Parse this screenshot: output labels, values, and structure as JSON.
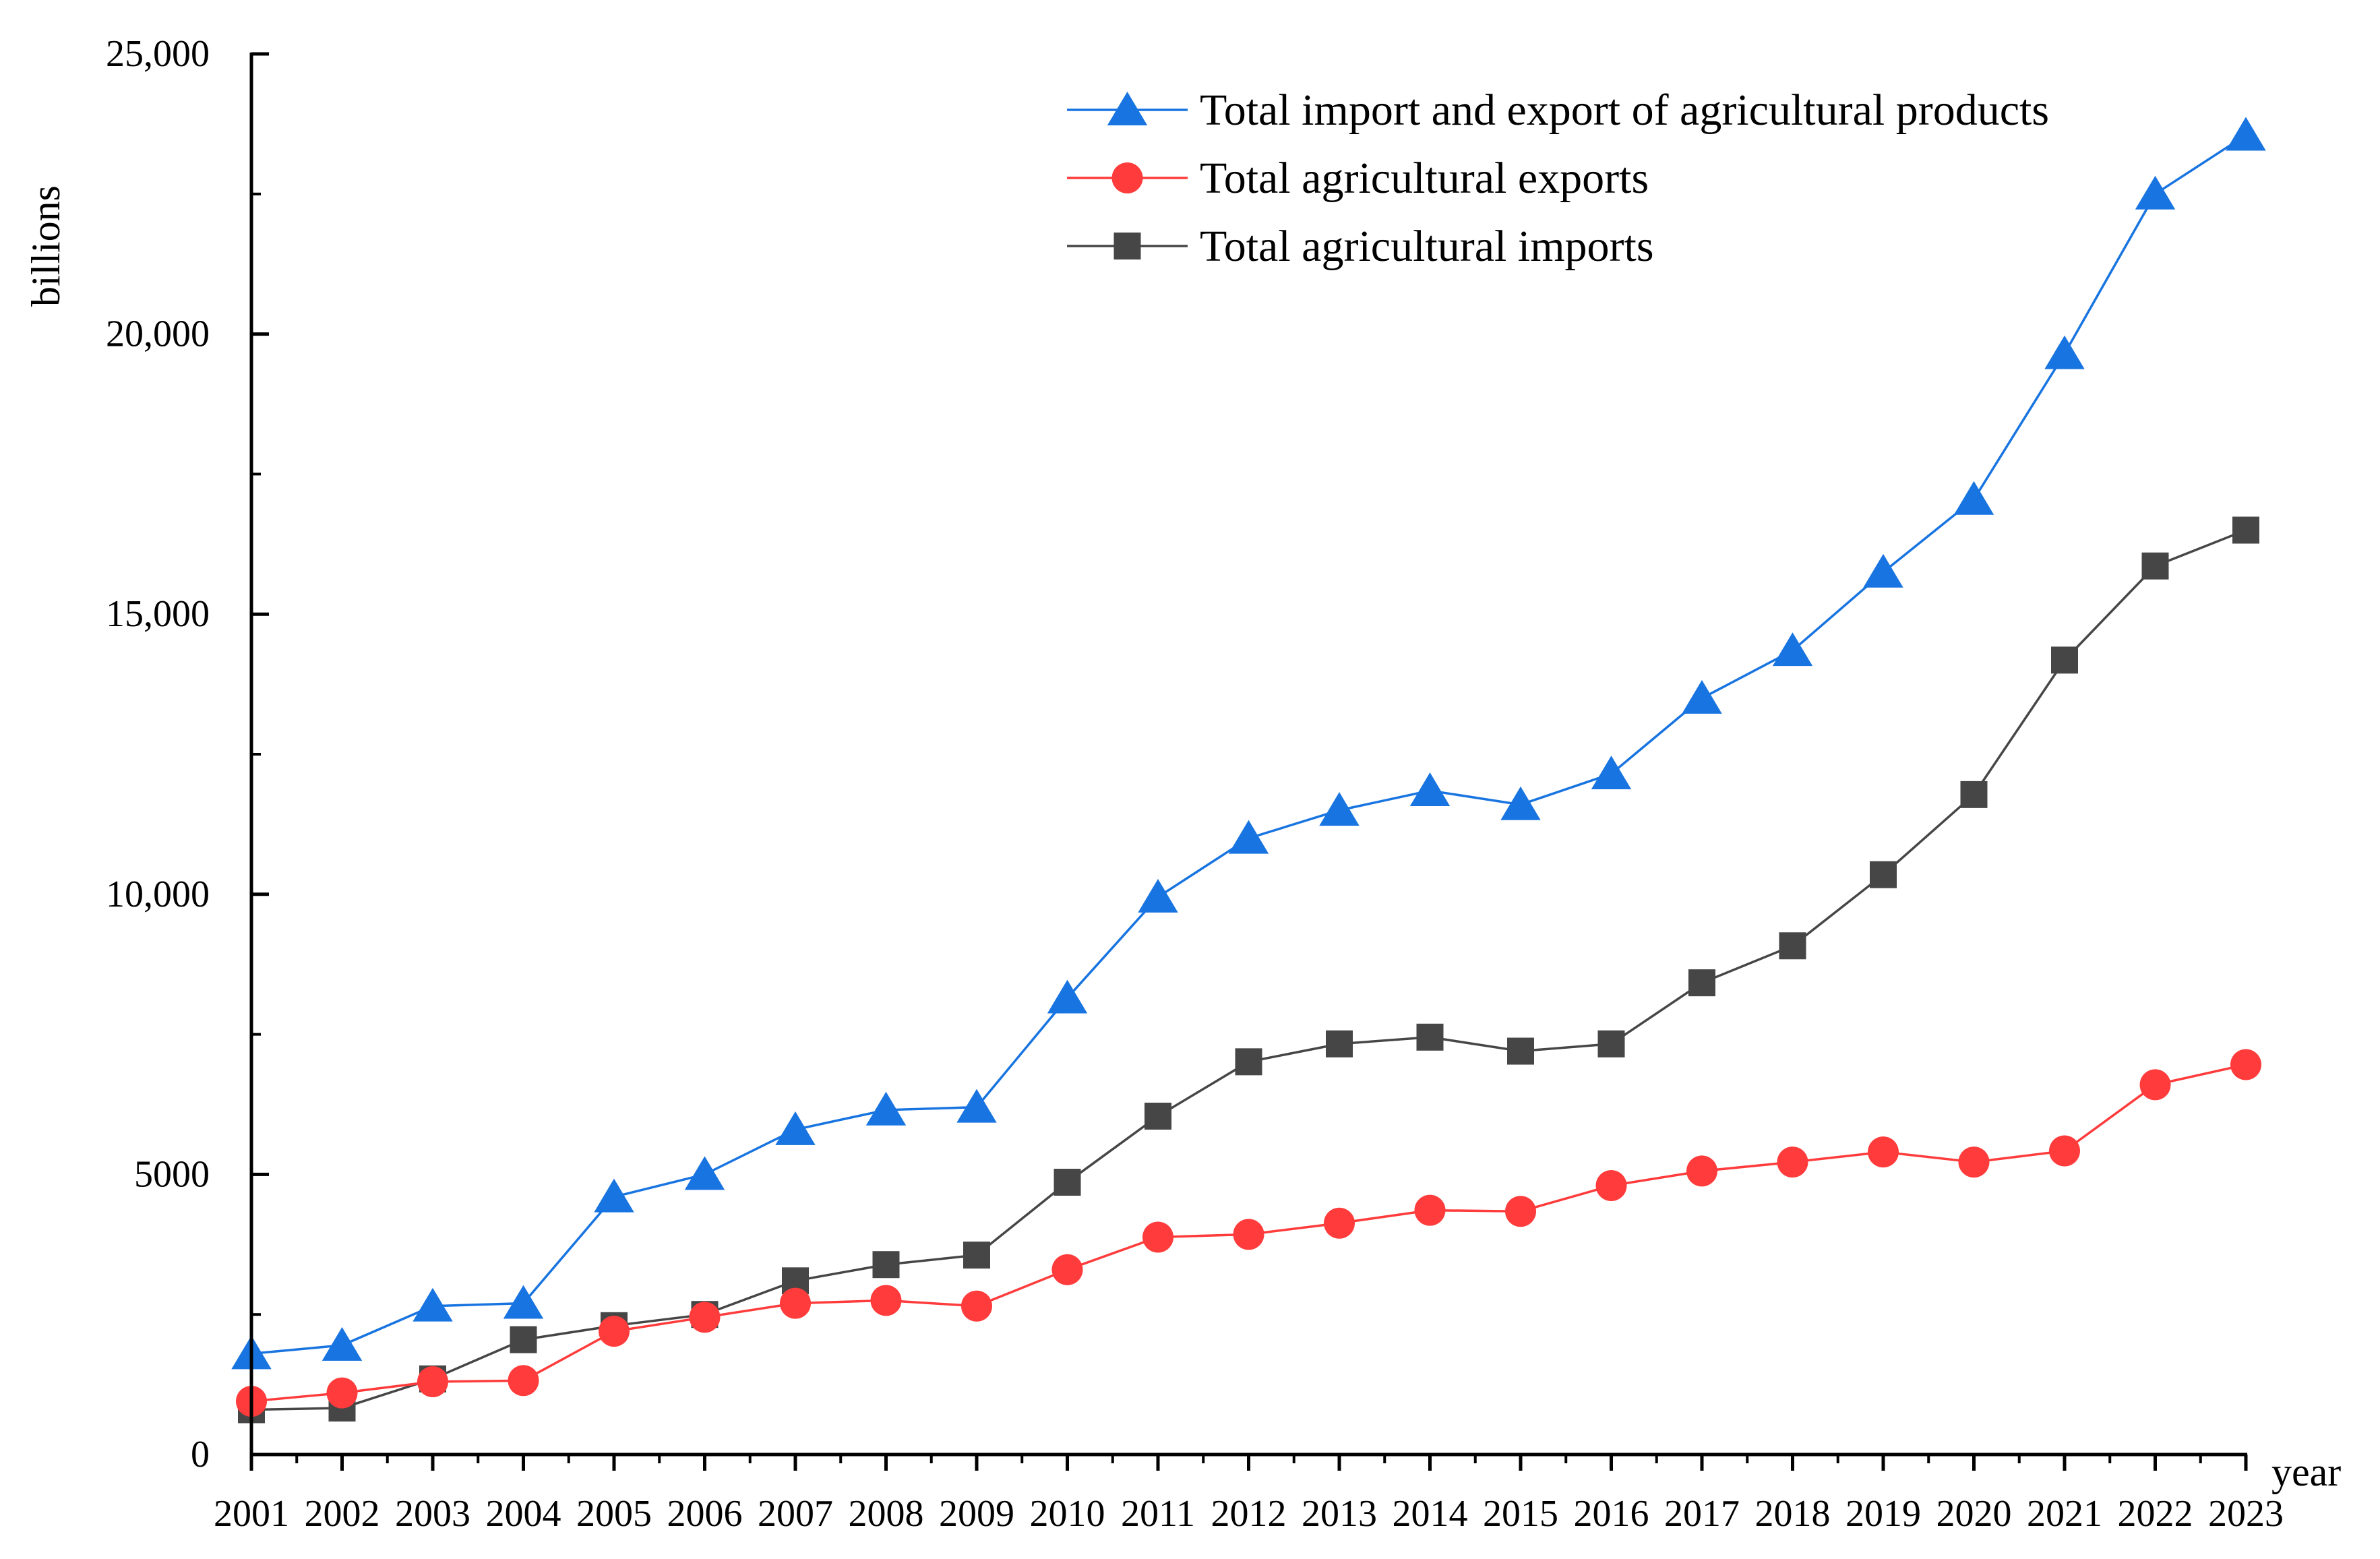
{
  "chart_data": {
    "type": "line",
    "title": "",
    "xlabel": "year",
    "ylabel": "billions",
    "ylim": [
      0,
      25000
    ],
    "yticks": [
      0,
      5000,
      10000,
      15000,
      20000,
      25000
    ],
    "ytick_labels": [
      "0",
      "5000",
      "10,000",
      "15,000",
      "20,000",
      "25,000"
    ],
    "categories": [
      "2001",
      "2002",
      "2003",
      "2004",
      "2005",
      "2006",
      "2007",
      "2008",
      "2009",
      "2010",
      "2011",
      "2012",
      "2013",
      "2014",
      "2015",
      "2016",
      "2017",
      "2018",
      "2019",
      "2020",
      "2021",
      "2022",
      "2023"
    ],
    "grid": false,
    "legend_position": "top-right",
    "series": [
      {
        "name": "Total import and export of agricultural products",
        "marker": "triangle",
        "color": "#1874e0",
        "values": [
          1800,
          1950,
          2650,
          2700,
          4600,
          5000,
          5800,
          6150,
          6200,
          8150,
          9950,
          11000,
          11500,
          11850,
          11600,
          12150,
          13500,
          14350,
          15750,
          17050,
          19650,
          22500,
          23550
        ]
      },
      {
        "name": "Total agricultural exports",
        "marker": "circle",
        "color": "#ff3b3b",
        "values": [
          950,
          1100,
          1300,
          1320,
          2200,
          2450,
          2700,
          2750,
          2650,
          3300,
          3880,
          3930,
          4130,
          4360,
          4340,
          4800,
          5060,
          5220,
          5400,
          5220,
          5420,
          6600,
          6960
        ]
      },
      {
        "name": "Total agricultural imports",
        "marker": "square",
        "color": "#464646",
        "values": [
          800,
          830,
          1350,
          2050,
          2300,
          2500,
          3100,
          3390,
          3560,
          4860,
          6040,
          7010,
          7330,
          7450,
          7200,
          7330,
          8420,
          9080,
          10350,
          11780,
          14180,
          15860,
          16500
        ]
      }
    ]
  }
}
